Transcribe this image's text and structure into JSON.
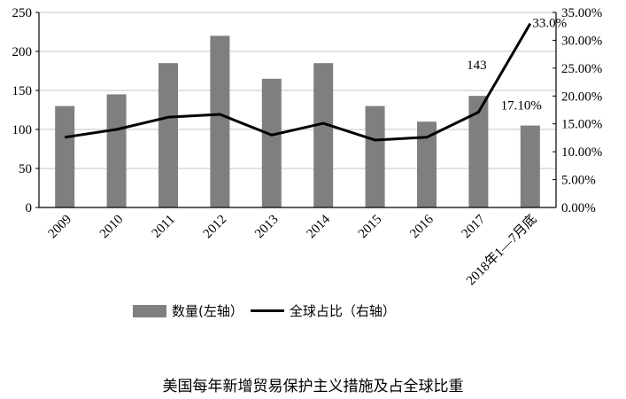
{
  "chart_data": {
    "type": "bar+line",
    "title": "美国每年新增贸易保护主义措施及占全球比重",
    "categories": [
      "2009",
      "2010",
      "2011",
      "2012",
      "2013",
      "2014",
      "2015",
      "2016",
      "2017",
      "2018年1—7月底"
    ],
    "series": [
      {
        "name": "数量(左轴)",
        "type": "bar",
        "axis": "left",
        "color": "#7f7f7f",
        "values": [
          130,
          145,
          185,
          220,
          165,
          185,
          130,
          110,
          143,
          105
        ]
      },
      {
        "name": "全球占比（右轴）",
        "type": "line",
        "axis": "right",
        "color": "#000000",
        "values": [
          12.6,
          14.0,
          16.2,
          16.7,
          13.0,
          15.1,
          12.1,
          12.6,
          17.1,
          33.0
        ]
      }
    ],
    "left_axis": {
      "min": 0,
      "max": 250,
      "ticks": [
        "0",
        "50",
        "100",
        "150",
        "200",
        "250"
      ]
    },
    "right_axis": {
      "min": 0,
      "max": 35,
      "ticks": [
        "0.00%",
        "5.00%",
        "10.00%",
        "15.00%",
        "20.00%",
        "25.00%",
        "30.00%",
        "35.00%"
      ]
    },
    "annotations": [
      {
        "text": "143",
        "series": "数量(左轴)",
        "category": "2017"
      },
      {
        "text": "17.10%",
        "series": "全球占比（右轴）",
        "category": "2017"
      },
      {
        "text": "33.0%",
        "series": "全球占比（右轴）",
        "category": "2018年1—7月底"
      }
    ],
    "grid": true,
    "legend_position": "bottom"
  },
  "legend": {
    "bar_label": "数量(左轴）",
    "line_label": "全球占比（右轴）"
  },
  "title": "美国每年新增贸易保护主义措施及占全球比重"
}
